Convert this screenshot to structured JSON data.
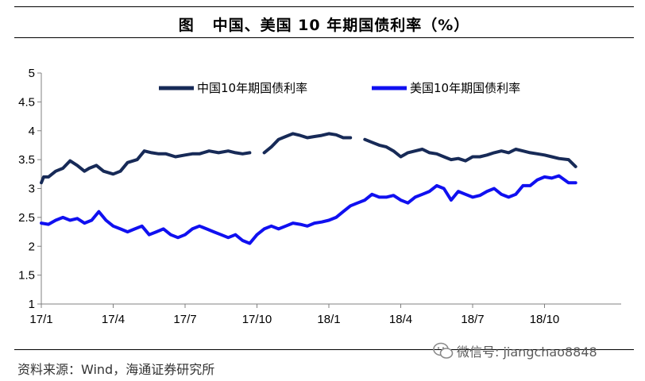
{
  "title": "图   中国、美国 10 年期国债利率（%）",
  "source": "资料来源：Wind，海通证券研究所",
  "watermark": {
    "icon": "wechat-icon",
    "text": "微信号: jiangchao8848"
  },
  "colors": {
    "china": "#172a57",
    "us": "#1010f0",
    "axis": "#808080"
  },
  "chart_data": {
    "type": "line",
    "title": "",
    "xlabel": "",
    "ylabel": "",
    "ylim": [
      1,
      5
    ],
    "yticks": [
      "1",
      "1.5",
      "2",
      "2.5",
      "3",
      "3.5",
      "4",
      "4.5",
      "5"
    ],
    "xticks": [
      "17/1",
      "17/4",
      "17/7",
      "17/10",
      "18/1",
      "18/4",
      "18/7",
      "18/10"
    ],
    "x_unit": "month index from 17/1",
    "grid": false,
    "legend": "top",
    "series": [
      {
        "name": "中国10年期国债利率",
        "color": "#172a57",
        "x": [
          0,
          0.1,
          0.3,
          0.6,
          0.9,
          1.2,
          1.5,
          1.8,
          2.0,
          2.3,
          2.6,
          3.0,
          3.3,
          3.6,
          4.0,
          4.3,
          4.6,
          4.9,
          5.2,
          5.6,
          6.0,
          6.3,
          6.6,
          7.0,
          7.4,
          7.8,
          8.1,
          8.4,
          8.7,
          9.0,
          9.3,
          9.6,
          9.9,
          10.2,
          10.5,
          10.8,
          11.1,
          11.4,
          11.7,
          12.0,
          12.3,
          12.6,
          12.9,
          13.2,
          13.5,
          13.8,
          14.1,
          14.4,
          14.7,
          15.0,
          15.3,
          15.6,
          15.9,
          16.2,
          16.5,
          16.8,
          17.1,
          17.4,
          17.7,
          18.0,
          18.3,
          18.6,
          18.9,
          19.2,
          19.5,
          19.8,
          20.1,
          20.4,
          20.7,
          21.0,
          21.3,
          21.6,
          22.0,
          22.3
        ],
        "y": [
          3.1,
          3.2,
          3.2,
          3.3,
          3.35,
          3.48,
          3.4,
          3.3,
          3.35,
          3.4,
          3.3,
          3.25,
          3.3,
          3.45,
          3.5,
          3.65,
          3.62,
          3.6,
          3.6,
          3.55,
          3.58,
          3.6,
          3.6,
          3.65,
          3.62,
          3.65,
          3.62,
          3.6,
          3.62,
          null,
          3.62,
          3.72,
          3.85,
          3.9,
          3.95,
          3.92,
          3.88,
          3.9,
          3.92,
          3.95,
          3.93,
          3.88,
          3.88,
          null,
          3.85,
          3.8,
          3.75,
          3.72,
          3.65,
          3.55,
          3.62,
          3.65,
          3.68,
          3.62,
          3.6,
          3.55,
          3.5,
          3.52,
          3.48,
          3.55,
          3.55,
          3.58,
          3.62,
          3.65,
          3.62,
          3.68,
          3.65,
          3.62,
          3.6,
          3.58,
          3.55,
          3.52,
          3.5,
          3.38
        ]
      },
      {
        "name": "美国10年期国债利率",
        "color": "#1010f0",
        "x": [
          0,
          0.3,
          0.6,
          0.9,
          1.2,
          1.5,
          1.8,
          2.1,
          2.4,
          2.7,
          3.0,
          3.3,
          3.6,
          3.9,
          4.2,
          4.5,
          4.8,
          5.1,
          5.4,
          5.7,
          6.0,
          6.3,
          6.6,
          6.9,
          7.2,
          7.5,
          7.8,
          8.1,
          8.4,
          8.7,
          9.0,
          9.3,
          9.6,
          9.9,
          10.2,
          10.5,
          10.8,
          11.1,
          11.4,
          11.7,
          12.0,
          12.3,
          12.6,
          12.9,
          13.2,
          13.5,
          13.8,
          14.1,
          14.4,
          14.7,
          15.0,
          15.3,
          15.6,
          15.9,
          16.2,
          16.5,
          16.8,
          17.1,
          17.4,
          17.7,
          18.0,
          18.3,
          18.6,
          18.9,
          19.2,
          19.5,
          19.8,
          20.1,
          20.4,
          20.7,
          21.0,
          21.3,
          21.6,
          22.0,
          22.3
        ],
        "y": [
          2.4,
          2.38,
          2.45,
          2.5,
          2.45,
          2.48,
          2.4,
          2.45,
          2.6,
          2.45,
          2.35,
          2.3,
          2.25,
          2.3,
          2.35,
          2.2,
          2.25,
          2.3,
          2.2,
          2.15,
          2.2,
          2.3,
          2.35,
          2.3,
          2.25,
          2.2,
          2.15,
          2.2,
          2.1,
          2.05,
          2.2,
          2.3,
          2.35,
          2.3,
          2.35,
          2.4,
          2.38,
          2.35,
          2.4,
          2.42,
          2.45,
          2.5,
          2.6,
          2.7,
          2.75,
          2.8,
          2.9,
          2.85,
          2.85,
          2.88,
          2.8,
          2.75,
          2.85,
          2.9,
          2.95,
          3.05,
          3.0,
          2.8,
          2.95,
          2.9,
          2.85,
          2.88,
          2.95,
          3.0,
          2.9,
          2.85,
          2.9,
          3.05,
          3.05,
          3.15,
          3.2,
          3.18,
          3.22,
          3.1,
          3.1
        ]
      }
    ]
  }
}
